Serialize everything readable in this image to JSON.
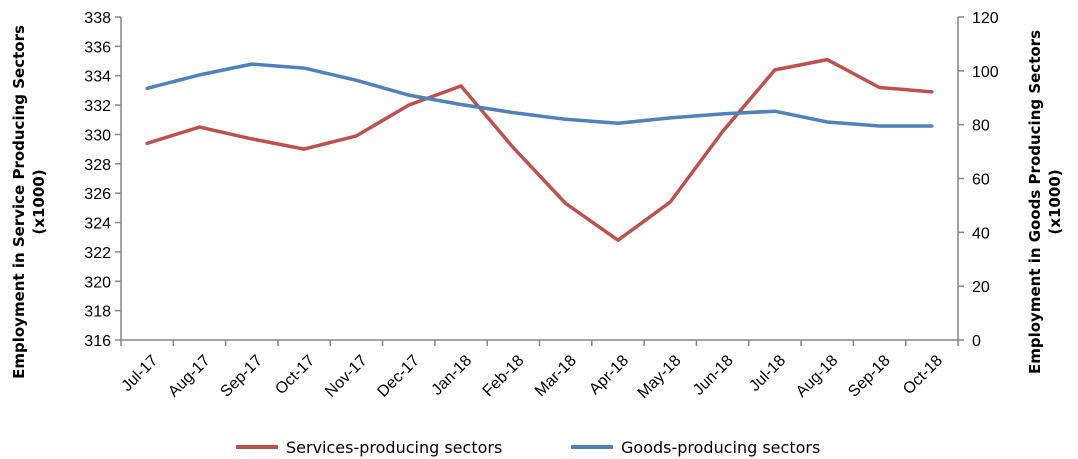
{
  "chart_data": {
    "type": "line",
    "categories": [
      "Jul-17",
      "Aug-17",
      "Sep-17",
      "Oct-17",
      "Nov-17",
      "Dec-17",
      "Jan-18",
      "Feb-18",
      "Mar-18",
      "Apr-18",
      "May-18",
      "Jun-18",
      "Jul-18",
      "Aug-18",
      "Sep-18",
      "Oct-18"
    ],
    "left_axis": {
      "label_line1": "Employment in Service Producing Sectors",
      "label_line2": "(x1000)",
      "ylim": [
        316,
        338
      ],
      "ticks": [
        316,
        318,
        320,
        322,
        324,
        326,
        328,
        330,
        332,
        334,
        336,
        338
      ]
    },
    "right_axis": {
      "label_line1": "Employment in Goods Producing Sectors",
      "label_line2": "(x1000)",
      "ylim": [
        0,
        120
      ],
      "ticks": [
        0,
        20,
        40,
        60,
        80,
        100,
        120
      ]
    },
    "series": [
      {
        "name": "Services-producing sectors",
        "axis": "left",
        "color": "#C0504D",
        "values": [
          329.4,
          330.5,
          329.7,
          329.0,
          329.9,
          332.0,
          333.3,
          329.1,
          325.3,
          322.8,
          325.4,
          330.2,
          334.4,
          335.1,
          333.2,
          332.9
        ]
      },
      {
        "name": "Goods-producing sectors",
        "axis": "right",
        "color": "#4F81BD",
        "values": [
          93.5,
          98.5,
          102.5,
          101.0,
          96.5,
          91.0,
          87.5,
          84.5,
          82.0,
          80.5,
          82.5,
          84.0,
          85.0,
          81.0,
          79.5,
          79.5
        ]
      }
    ],
    "legend_position": "bottom",
    "grid": false
  }
}
